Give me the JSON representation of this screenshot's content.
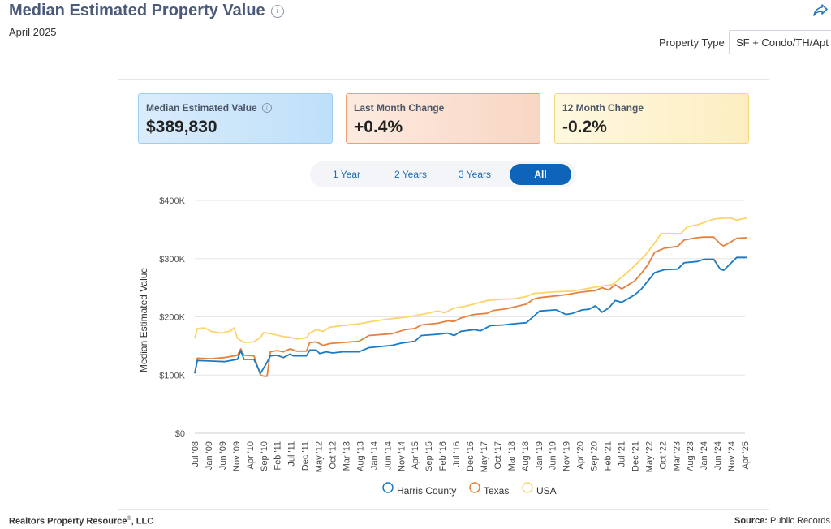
{
  "header": {
    "title": "Median Estimated Property Value",
    "subtitle": "April 2025",
    "property_type_label": "Property Type",
    "property_type_value": "SF + Condo/TH/Apt"
  },
  "cards": [
    {
      "label": "Median Estimated Value",
      "value": "$389,830",
      "has_info": true
    },
    {
      "label": "Last Month Change",
      "value": "+0.4%",
      "has_info": false
    },
    {
      "label": "12 Month Change",
      "value": "-0.2%",
      "has_info": false
    }
  ],
  "range_buttons": [
    "1 Year",
    "2 Years",
    "3 Years",
    "All"
  ],
  "active_range": "All",
  "colors": {
    "harris": "#1a7bc4",
    "texas": "#e5813e",
    "usa": "#fbd46b",
    "grid": "#e6e6e6",
    "active_button": "#0e64b9",
    "title": "#4a5a78"
  },
  "chart_data": {
    "type": "line",
    "ylabel": "Median Estimated Value",
    "xlabel": "",
    "ylim": [
      0,
      400000
    ],
    "yticks": [
      0,
      100000,
      200000,
      300000,
      400000
    ],
    "ytick_labels": [
      "$0",
      "$100K",
      "$200K",
      "$300K",
      "$400K"
    ],
    "x_start": [
      2008,
      7
    ],
    "x_end": [
      2025,
      4
    ],
    "xtick_labels": [
      "Jul '08",
      "Jan '09",
      "Jun '09",
      "Nov '09",
      "Apr '10",
      "Sep '10",
      "Feb '11",
      "Jul '11",
      "Dec '11",
      "May '12",
      "Oct '12",
      "Mar '13",
      "Aug '13",
      "Jan '14",
      "Jun '14",
      "Nov '14",
      "Apr '15",
      "Sep '15",
      "Feb '16",
      "Jul '16",
      "Dec '16",
      "May '17",
      "Oct '17",
      "Mar '18",
      "Aug '18",
      "Jan '19",
      "Jun '19",
      "Nov '19",
      "Apr '20",
      "Sep '20",
      "Feb '21",
      "Jul '21",
      "Dec '21",
      "May '22",
      "Oct '22",
      "Mar '23",
      "Aug '23",
      "Jan '24",
      "Jun '24",
      "Nov '24",
      "Apr '25"
    ],
    "legend": [
      "Harris County",
      "Texas",
      "USA"
    ],
    "legend_position": "bottom",
    "series": [
      {
        "name": "Harris County",
        "points": [
          [
            2008.5,
            103000
          ],
          [
            2008.58,
            125000
          ],
          [
            2009.0,
            124000
          ],
          [
            2009.4,
            123000
          ],
          [
            2009.8,
            127000
          ],
          [
            2009.9,
            142000
          ],
          [
            2010.0,
            127000
          ],
          [
            2010.3,
            127000
          ],
          [
            2010.5,
            103000
          ],
          [
            2010.7,
            122000
          ],
          [
            2010.8,
            133000
          ],
          [
            2011.0,
            134000
          ],
          [
            2011.2,
            130000
          ],
          [
            2011.4,
            136000
          ],
          [
            2011.5,
            133000
          ],
          [
            2011.9,
            133000
          ],
          [
            2012.0,
            143000
          ],
          [
            2012.2,
            143000
          ],
          [
            2012.3,
            137000
          ],
          [
            2012.5,
            140000
          ],
          [
            2012.7,
            138000
          ],
          [
            2013.0,
            140000
          ],
          [
            2013.5,
            140000
          ],
          [
            2013.8,
            147000
          ],
          [
            2014.5,
            151000
          ],
          [
            2014.8,
            155000
          ],
          [
            2015.2,
            158000
          ],
          [
            2015.4,
            168000
          ],
          [
            2015.9,
            170000
          ],
          [
            2016.2,
            172000
          ],
          [
            2016.4,
            168000
          ],
          [
            2016.6,
            175000
          ],
          [
            2017.0,
            178000
          ],
          [
            2017.2,
            176000
          ],
          [
            2017.5,
            185000
          ],
          [
            2017.9,
            186000
          ],
          [
            2018.2,
            188000
          ],
          [
            2018.6,
            190000
          ],
          [
            2018.8,
            200000
          ],
          [
            2019.0,
            210000
          ],
          [
            2019.5,
            212000
          ],
          [
            2019.8,
            204000
          ],
          [
            2020.0,
            206000
          ],
          [
            2020.3,
            212000
          ],
          [
            2020.5,
            213000
          ],
          [
            2020.7,
            219000
          ],
          [
            2020.9,
            208000
          ],
          [
            2021.1,
            215000
          ],
          [
            2021.3,
            228000
          ],
          [
            2021.5,
            225000
          ],
          [
            2021.9,
            238000
          ],
          [
            2022.1,
            248000
          ],
          [
            2022.3,
            262000
          ],
          [
            2022.5,
            276000
          ],
          [
            2022.8,
            281000
          ],
          [
            2023.2,
            282000
          ],
          [
            2023.4,
            293000
          ],
          [
            2023.8,
            295000
          ],
          [
            2024.0,
            299000
          ],
          [
            2024.3,
            299000
          ],
          [
            2024.5,
            282000
          ],
          [
            2024.6,
            280000
          ],
          [
            2024.8,
            291000
          ],
          [
            2025.0,
            302000
          ],
          [
            2025.3,
            302000
          ]
        ]
      },
      {
        "name": "Texas",
        "points": [
          [
            2008.5,
            103000
          ],
          [
            2008.58,
            129000
          ],
          [
            2009.0,
            128000
          ],
          [
            2009.4,
            130000
          ],
          [
            2009.8,
            134000
          ],
          [
            2009.9,
            145000
          ],
          [
            2010.0,
            134000
          ],
          [
            2010.3,
            133000
          ],
          [
            2010.5,
            100000
          ],
          [
            2010.6,
            98000
          ],
          [
            2010.7,
            98000
          ],
          [
            2010.8,
            140000
          ],
          [
            2011.0,
            142000
          ],
          [
            2011.2,
            140000
          ],
          [
            2011.4,
            145000
          ],
          [
            2011.6,
            141000
          ],
          [
            2011.9,
            141000
          ],
          [
            2012.0,
            156000
          ],
          [
            2012.2,
            157000
          ],
          [
            2012.4,
            151000
          ],
          [
            2012.6,
            154000
          ],
          [
            2013.0,
            156000
          ],
          [
            2013.5,
            158000
          ],
          [
            2013.8,
            168000
          ],
          [
            2014.5,
            171000
          ],
          [
            2014.9,
            178000
          ],
          [
            2015.2,
            180000
          ],
          [
            2015.4,
            186000
          ],
          [
            2015.9,
            189000
          ],
          [
            2016.2,
            193000
          ],
          [
            2016.4,
            192000
          ],
          [
            2016.6,
            198000
          ],
          [
            2017.0,
            204000
          ],
          [
            2017.4,
            206000
          ],
          [
            2017.6,
            211000
          ],
          [
            2018.0,
            214000
          ],
          [
            2018.3,
            218000
          ],
          [
            2018.6,
            222000
          ],
          [
            2018.8,
            230000
          ],
          [
            2019.0,
            233000
          ],
          [
            2019.5,
            236000
          ],
          [
            2019.8,
            238000
          ],
          [
            2020.2,
            242000
          ],
          [
            2020.5,
            244000
          ],
          [
            2020.7,
            245000
          ],
          [
            2020.9,
            250000
          ],
          [
            2021.1,
            246000
          ],
          [
            2021.3,
            255000
          ],
          [
            2021.5,
            248000
          ],
          [
            2021.9,
            262000
          ],
          [
            2022.1,
            275000
          ],
          [
            2022.3,
            290000
          ],
          [
            2022.5,
            311000
          ],
          [
            2022.8,
            318000
          ],
          [
            2023.2,
            321000
          ],
          [
            2023.4,
            332000
          ],
          [
            2023.8,
            336000
          ],
          [
            2024.0,
            337000
          ],
          [
            2024.3,
            337000
          ],
          [
            2024.5,
            325000
          ],
          [
            2024.6,
            322000
          ],
          [
            2024.8,
            328000
          ],
          [
            2025.0,
            335000
          ],
          [
            2025.3,
            336000
          ]
        ]
      },
      {
        "name": "USA",
        "points": [
          [
            2008.5,
            163000
          ],
          [
            2008.58,
            180000
          ],
          [
            2008.8,
            181000
          ],
          [
            2009.0,
            175000
          ],
          [
            2009.3,
            172000
          ],
          [
            2009.6,
            176000
          ],
          [
            2009.7,
            181000
          ],
          [
            2009.8,
            163000
          ],
          [
            2010.0,
            156000
          ],
          [
            2010.3,
            157000
          ],
          [
            2010.5,
            165000
          ],
          [
            2010.6,
            173000
          ],
          [
            2010.9,
            170000
          ],
          [
            2011.2,
            166000
          ],
          [
            2011.4,
            165000
          ],
          [
            2011.6,
            162000
          ],
          [
            2011.9,
            164000
          ],
          [
            2012.0,
            172000
          ],
          [
            2012.2,
            178000
          ],
          [
            2012.4,
            175000
          ],
          [
            2012.6,
            182000
          ],
          [
            2013.0,
            185000
          ],
          [
            2013.5,
            188000
          ],
          [
            2014.0,
            193000
          ],
          [
            2014.5,
            197000
          ],
          [
            2015.0,
            200000
          ],
          [
            2015.5,
            205000
          ],
          [
            2015.9,
            210000
          ],
          [
            2016.1,
            207000
          ],
          [
            2016.4,
            215000
          ],
          [
            2016.8,
            219000
          ],
          [
            2017.0,
            222000
          ],
          [
            2017.4,
            228000
          ],
          [
            2017.8,
            230000
          ],
          [
            2018.2,
            231000
          ],
          [
            2018.6,
            235000
          ],
          [
            2018.8,
            240000
          ],
          [
            2019.0,
            241000
          ],
          [
            2019.5,
            243000
          ],
          [
            2020.0,
            244000
          ],
          [
            2020.5,
            249000
          ],
          [
            2020.9,
            253000
          ],
          [
            2021.2,
            255000
          ],
          [
            2021.5,
            268000
          ],
          [
            2021.8,
            283000
          ],
          [
            2022.2,
            305000
          ],
          [
            2022.5,
            327000
          ],
          [
            2022.7,
            343000
          ],
          [
            2023.0,
            343000
          ],
          [
            2023.3,
            343000
          ],
          [
            2023.5,
            355000
          ],
          [
            2023.8,
            358000
          ],
          [
            2024.0,
            362000
          ],
          [
            2024.3,
            368000
          ],
          [
            2024.5,
            369000
          ],
          [
            2024.8,
            370000
          ],
          [
            2025.0,
            366000
          ],
          [
            2025.3,
            370000
          ]
        ]
      }
    ]
  },
  "footer": {
    "brand": "Realtors Property Resource",
    "brand_mark": "®",
    "brand_suffix": ", LLC",
    "source_label": "Source:",
    "source_value": "Public Records"
  }
}
